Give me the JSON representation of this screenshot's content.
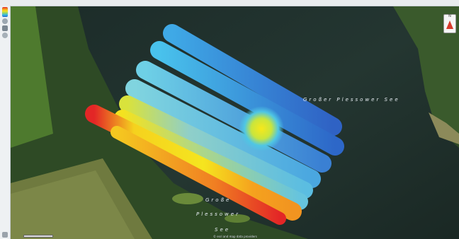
{
  "map": {
    "lake_label_top": "Großer Plessower See",
    "lake_label_bottom_1": "Große",
    "lake_label_bottom_2": "Plessower",
    "lake_label_bottom_3": "See",
    "north_label": "N",
    "attribution": "© esri and map data providers",
    "color_scale": [
      "#e32626",
      "#f59b20",
      "#f5e21e",
      "#8fd36d",
      "#32b6e8",
      "#2c61c7"
    ]
  }
}
